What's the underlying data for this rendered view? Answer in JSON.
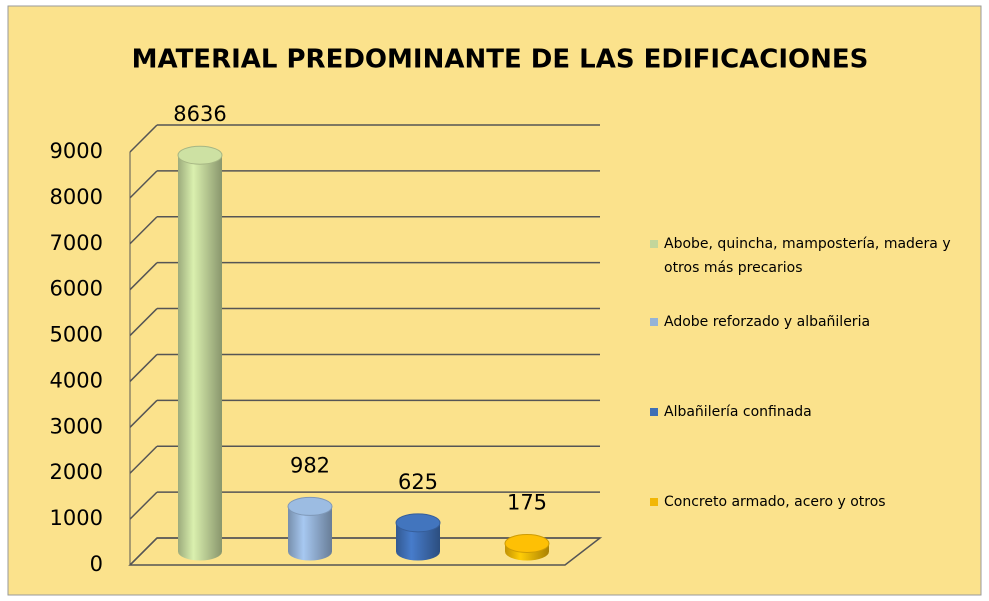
{
  "chart_data": {
    "type": "bar3d",
    "title": "MATERIAL PREDOMINANTE DE LAS EDIFICACIONES",
    "categories": [
      "Abobe, quincha, mampostería, madera y otros más precarios",
      "Adobe reforzado y albañileria",
      "Albañilería confinada",
      "Concreto armado, acero y otros"
    ],
    "values": [
      8636,
      982,
      625,
      175
    ],
    "colors": [
      "#c3d69b",
      "#95b3d7",
      "#3f6fb5",
      "#f2b705"
    ],
    "ylim": [
      0,
      9000
    ],
    "yticks": [
      0,
      1000,
      2000,
      3000,
      4000,
      5000,
      6000,
      7000,
      8000,
      9000
    ],
    "grid": true,
    "legend": "right"
  }
}
